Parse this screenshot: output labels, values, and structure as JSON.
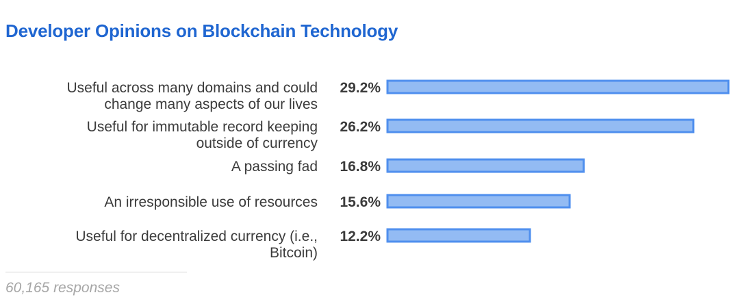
{
  "chart_data": {
    "type": "bar",
    "orientation": "horizontal",
    "title": "Developer Opinions on Blockchain Technology",
    "categories": [
      [
        "Useful across many domains and could",
        "change many aspects of our lives"
      ],
      [
        "Useful for immutable record keeping",
        "outside of currency"
      ],
      [
        "A passing fad"
      ],
      [
        "An irresponsible use of resources"
      ],
      [
        "Useful for decentralized currency (i.e.,",
        "Bitcoin)"
      ]
    ],
    "values": [
      29.2,
      26.2,
      16.8,
      15.6,
      12.2
    ],
    "value_labels": [
      "29.2%",
      "26.2%",
      "16.8%",
      "15.6%",
      "12.2%"
    ],
    "xlim": [
      0,
      29.2
    ],
    "xlabel": "",
    "ylabel": "",
    "grid": false,
    "legend": "none"
  },
  "colors": {
    "title": "#1f66d1",
    "bar_fill": "#93bbf3",
    "bar_stroke": "#4f8fee",
    "text": "#3b3b3b",
    "footnote": "#a6a6a6"
  },
  "footer": {
    "responses": "60,165 responses"
  }
}
